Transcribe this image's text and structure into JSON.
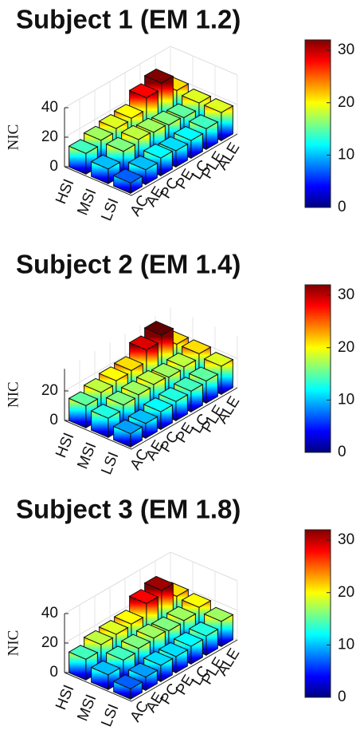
{
  "chart_data": [
    {
      "type": "bar3d",
      "title": "Subject 1 (EM 1.2)",
      "zlabel": "NIC",
      "categories": [
        "AC",
        "AE",
        "PC",
        "PE",
        "LC",
        "PLE",
        "ALE"
      ],
      "series": [
        {
          "name": "HSI",
          "values": [
            14,
            17,
            19,
            20,
            28,
            32,
            21
          ]
        },
        {
          "name": "MSI",
          "values": [
            10,
            16,
            18,
            17,
            16,
            15,
            19
          ]
        },
        {
          "name": "LSI",
          "values": [
            7,
            10,
            12,
            11,
            12,
            14,
            19
          ]
        }
      ],
      "zlim": [
        0,
        40
      ],
      "zticks": [
        0,
        20,
        40
      ],
      "grid": true,
      "colormap": "jet",
      "clim": [
        0,
        32
      ],
      "colorbar_ticks": [
        0,
        10,
        20,
        30
      ]
    },
    {
      "type": "bar3d",
      "title": "Subject 2 (EM 1.4)",
      "zlabel": "NIC",
      "categories": [
        "AC",
        "AE",
        "PC",
        "PE",
        "LC",
        "PLE",
        "ALE"
      ],
      "series": [
        {
          "name": "HSI",
          "values": [
            15,
            18,
            20,
            21,
            29,
            33,
            21
          ]
        },
        {
          "name": "MSI",
          "values": [
            13,
            16,
            17,
            18,
            17,
            18,
            21
          ]
        },
        {
          "name": "LSI",
          "values": [
            9,
            10,
            12,
            13,
            14,
            15,
            19
          ]
        }
      ],
      "zlim": [
        0,
        35
      ],
      "zticks": [
        0,
        20
      ],
      "grid": true,
      "colormap": "jet",
      "clim": [
        0,
        32
      ],
      "colorbar_ticks": [
        0,
        10,
        20,
        30
      ]
    },
    {
      "type": "bar3d",
      "title": "Subject 3 (EM 1.8)",
      "zlabel": "NIC",
      "categories": [
        "AC",
        "AE",
        "PC",
        "PE",
        "LC",
        "PLE",
        "ALE"
      ],
      "series": [
        {
          "name": "HSI",
          "values": [
            14,
            18,
            19,
            20,
            28,
            31,
            21
          ]
        },
        {
          "name": "MSI",
          "values": [
            10,
            14,
            16,
            17,
            16,
            17,
            20
          ]
        },
        {
          "name": "LSI",
          "values": [
            7,
            9,
            11,
            11,
            12,
            13,
            17
          ]
        }
      ],
      "zlim": [
        0,
        40
      ],
      "zticks": [
        0,
        20,
        40
      ],
      "grid": true,
      "colormap": "jet",
      "clim": [
        0,
        32
      ],
      "colorbar_ticks": [
        0,
        10,
        20,
        30
      ]
    }
  ]
}
